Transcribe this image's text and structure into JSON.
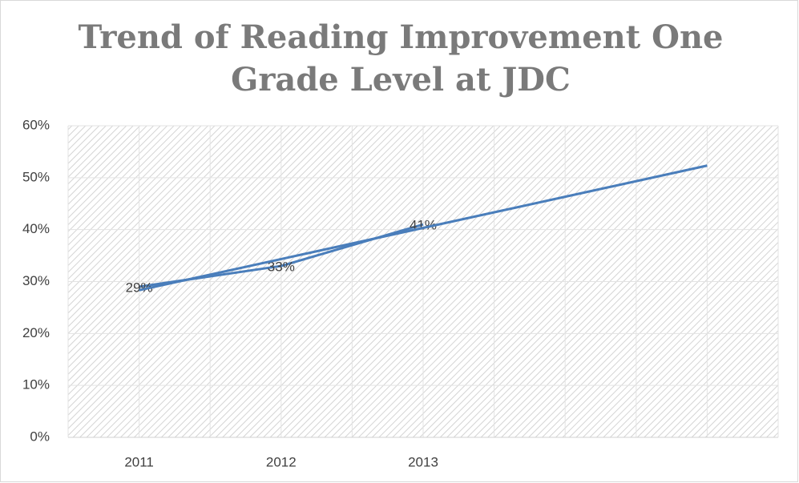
{
  "chart_data": {
    "type": "line",
    "title": [
      "Trend of Reading Improvement One",
      "Grade Level at JDC"
    ],
    "categories": [
      "2011",
      "2012",
      "2013",
      null,
      null
    ],
    "series": [
      {
        "color": "#4a7ebb",
        "values": [
          29,
          33,
          41,
          null,
          null
        ],
        "value_labels": [
          "29%",
          "33%",
          "41%",
          null,
          null
        ]
      },
      {
        "color": "#4a7ebb",
        "values": [
          28.33,
          34.33,
          40.33,
          46.33,
          52.33
        ]
      }
    ],
    "ylim": [
      0,
      60
    ],
    "yticks": [
      {
        "value": 0,
        "label": "0%"
      },
      {
        "value": 10,
        "label": "10%"
      },
      {
        "value": 20,
        "label": "20%"
      },
      {
        "value": 30,
        "label": "30%"
      },
      {
        "value": 40,
        "label": "40%"
      },
      {
        "value": 50,
        "label": "50%"
      },
      {
        "value": 60,
        "label": "60%"
      }
    ],
    "grid": true
  }
}
